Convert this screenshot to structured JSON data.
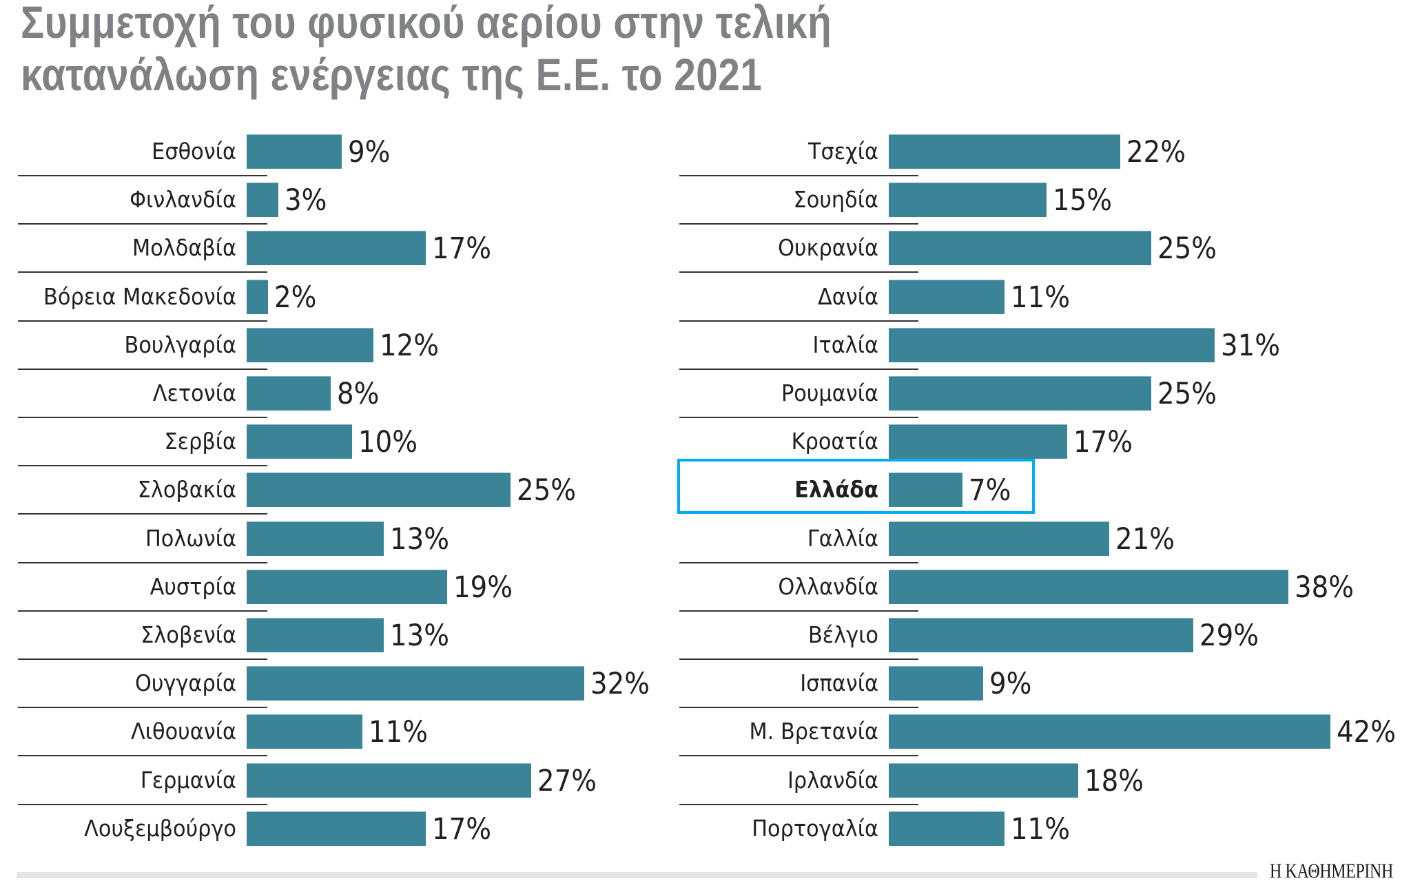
{
  "title": {
    "line1": "Συμμετοχή του φυσικού αερίου στην τελική",
    "line2": "κατανάλωση ενέργειας της Ε.Ε. το 2021"
  },
  "colors": {
    "bar": "#3b8497",
    "title": "#808184",
    "text": "#231f20",
    "highlight_border": "#00aeef",
    "separator": "#333333",
    "footer_bar": "#e6e5e5"
  },
  "footer": {
    "logo": "Η ΚΑΘΗΜΕΡΙΝΗ"
  },
  "chart_data": {
    "type": "bar",
    "orientation": "horizontal",
    "title": "Συμμετοχή του φυσικού αερίου στην τελική κατανάλωση ενέργειας της Ε.Ε. το 2021",
    "xlabel": "",
    "ylabel": "",
    "unit": "%",
    "grid": false,
    "legend": null,
    "highlight": "Ελλάδα",
    "panels": [
      {
        "position": "left",
        "categories": [
          "Εσθονία",
          "Φινλανδία",
          "Μολδαβία",
          "Βόρεια Μακεδονία",
          "Βουλγαρία",
          "Λετονία",
          "Σερβία",
          "Σλοβακία",
          "Πολωνία",
          "Αυστρία",
          "Σλοβενία",
          "Ουγγαρία",
          "Λιθουανία",
          "Γερμανία",
          "Λουξεμβούργο"
        ],
        "values": [
          9,
          3,
          17,
          2,
          12,
          8,
          10,
          25,
          13,
          19,
          13,
          32,
          11,
          27,
          17
        ],
        "labels": [
          "9%",
          "3%",
          "17%",
          "2%",
          "12%",
          "8%",
          "10%",
          "25%",
          "13%",
          "19%",
          "13%",
          "32%",
          "11%",
          "27%",
          "17%"
        ]
      },
      {
        "position": "right",
        "categories": [
          "Τσεχία",
          "Σουηδία",
          "Ουκρανία",
          "Δανία",
          "Ιταλία",
          "Ρουμανία",
          "Κροατία",
          "Ελλάδα",
          "Γαλλία",
          "Ολλανδία",
          "Βέλγιο",
          "Ισπανία",
          "Μ. Βρετανία",
          "Ιρλανδία",
          "Πορτογαλία"
        ],
        "values": [
          22,
          15,
          25,
          11,
          31,
          25,
          17,
          7,
          21,
          38,
          29,
          9,
          42,
          18,
          11
        ],
        "labels": [
          "22%",
          "15%",
          "25%",
          "11%",
          "31%",
          "25%",
          "17%",
          "7%",
          "21%",
          "38%",
          "29%",
          "9%",
          "42%",
          "18%",
          "11%"
        ]
      }
    ]
  }
}
